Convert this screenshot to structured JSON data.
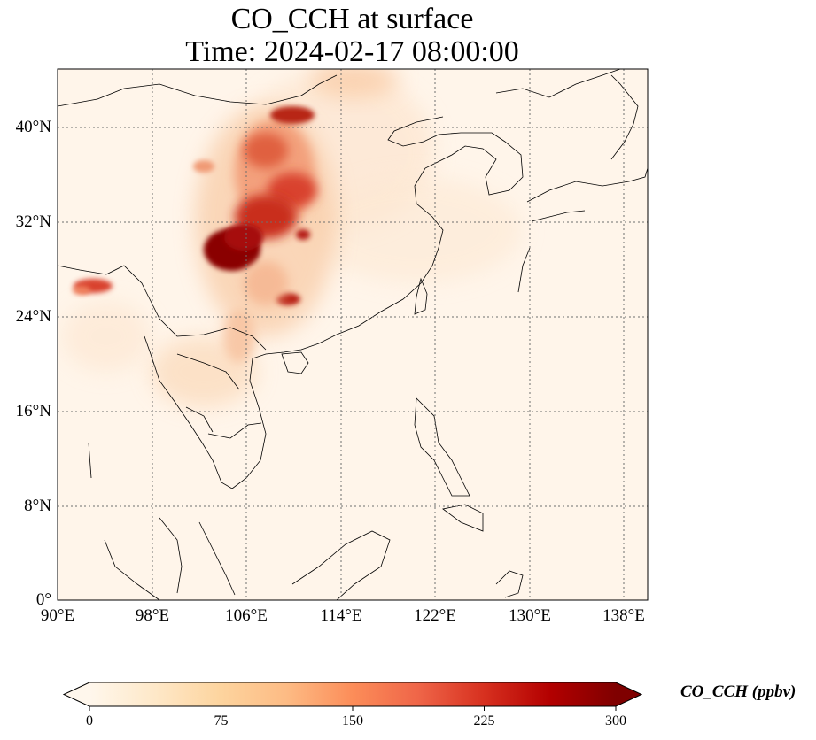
{
  "title_line1": "CO_CCH at surface",
  "title_line2": "Time: 2024-02-17 08:00:00",
  "map": {
    "lon_range": [
      90,
      140
    ],
    "lat_range": [
      0,
      44
    ],
    "lon_ticks": [
      "90°E",
      "98°E",
      "106°E",
      "114°E",
      "122°E",
      "130°E",
      "138°E"
    ],
    "lat_ticks": [
      "0°",
      "8°N",
      "16°N",
      "24°N",
      "32°N",
      "40°N"
    ],
    "gridlines": "dotted"
  },
  "colorbar": {
    "label": "CO_CCH (ppbv)",
    "ticks": [
      "0",
      "75",
      "150",
      "225",
      "300"
    ],
    "min": 0,
    "max": 300,
    "extend": "both",
    "colormap": "OrRd",
    "colors": [
      "#fff7ec",
      "#fee8c8",
      "#fdd49e",
      "#fdbb84",
      "#fc8d59",
      "#ef6548",
      "#d7301f",
      "#b30000",
      "#7f0000"
    ]
  }
}
